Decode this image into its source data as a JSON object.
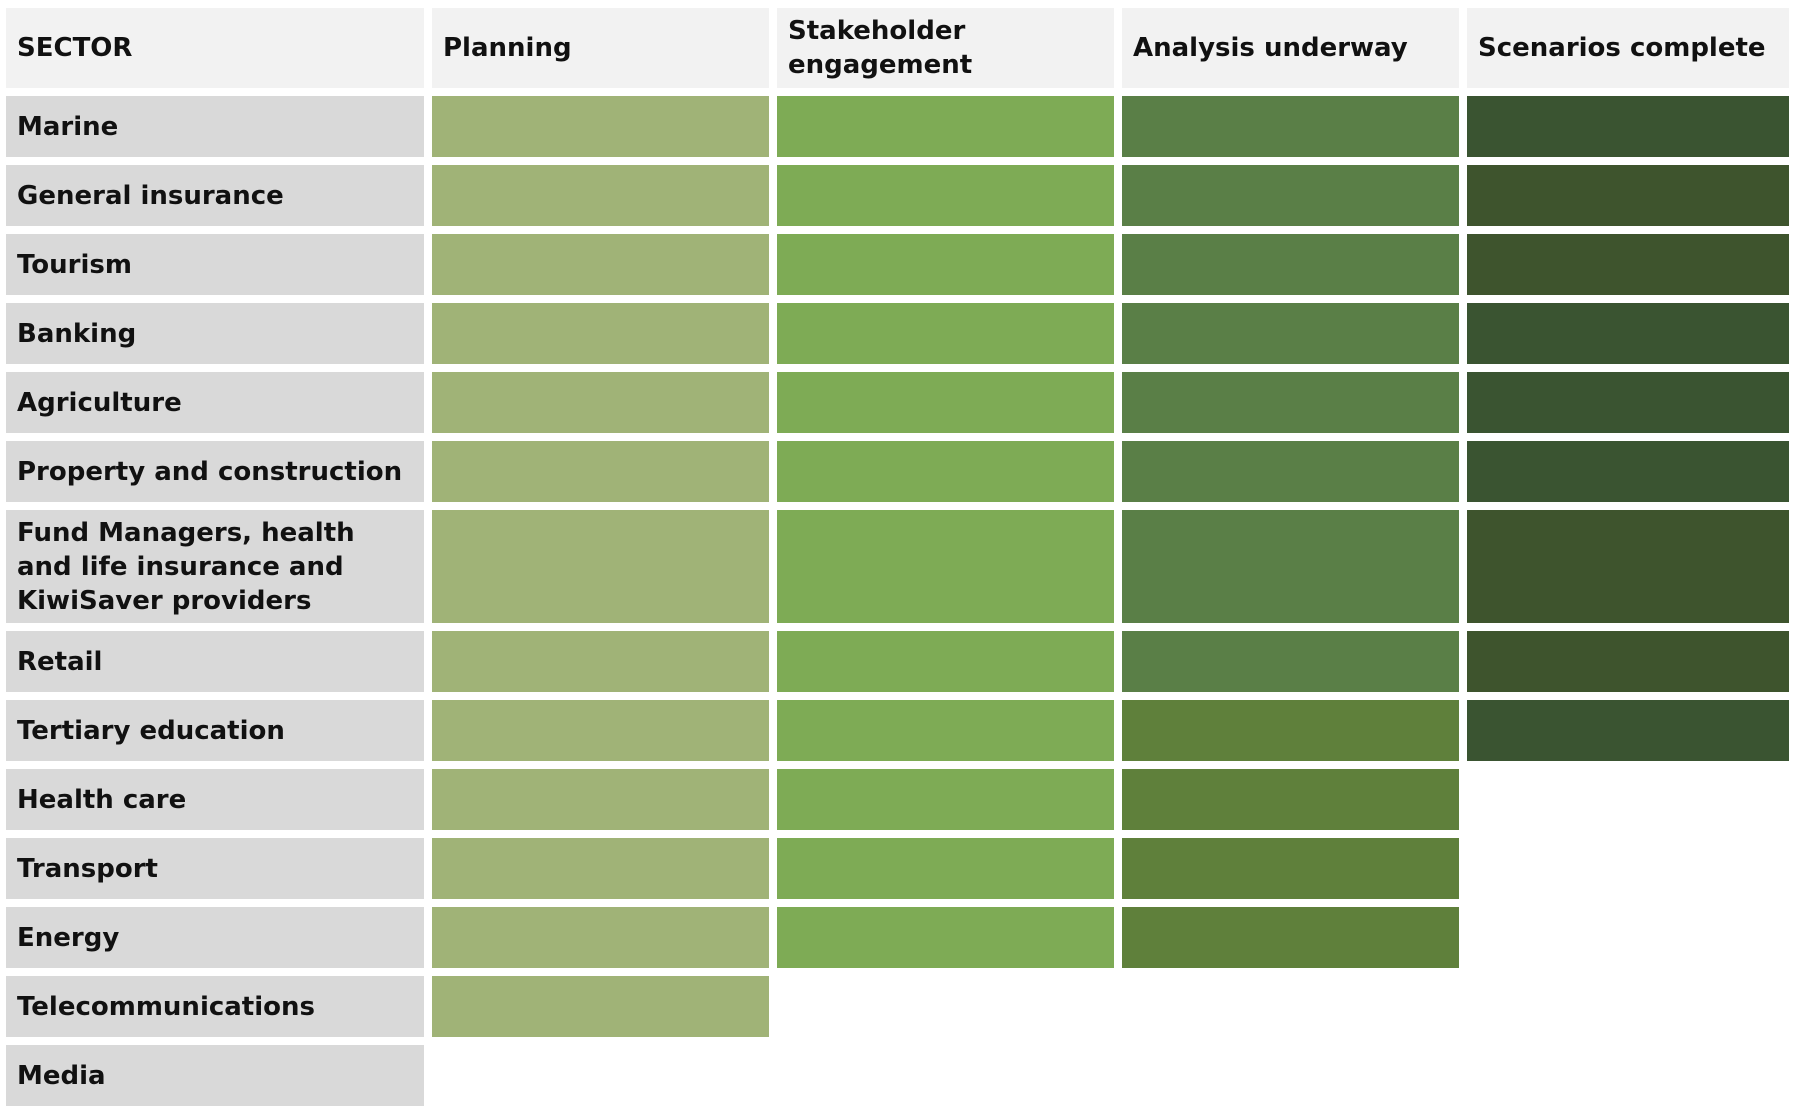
{
  "chart_data": {
    "type": "table",
    "columns": [
      "SECTOR",
      "Planning",
      "Stakeholder engagement",
      "Analysis underway",
      "Scenarios complete"
    ],
    "rows": [
      {
        "sector": "Marine",
        "stages_reached": 4
      },
      {
        "sector": "General insurance",
        "stages_reached": 4
      },
      {
        "sector": "Tourism",
        "stages_reached": 4
      },
      {
        "sector": "Banking",
        "stages_reached": 4
      },
      {
        "sector": "Agriculture",
        "stages_reached": 4
      },
      {
        "sector": "Property and construction",
        "stages_reached": 4
      },
      {
        "sector": "Fund Managers, health and life insurance and KiwiSaver providers",
        "stages_reached": 4
      },
      {
        "sector": "Retail",
        "stages_reached": 4
      },
      {
        "sector": "Tertiary education",
        "stages_reached": 4
      },
      {
        "sector": "Health care",
        "stages_reached": 3
      },
      {
        "sector": "Transport",
        "stages_reached": 3
      },
      {
        "sector": "Energy",
        "stages_reached": 3
      },
      {
        "sector": "Telecommunications",
        "stages_reached": 1
      },
      {
        "sector": "Media",
        "stages_reached": 0
      }
    ],
    "colors": {
      "header_bg": "#f2f2f2",
      "sector_bg": "#d9d9d9",
      "planning": "#a0b377",
      "stakeholder_engagement": "#7eab55",
      "analysis_underway": "#5a7f47",
      "analysis_underway_alt": "#5f803b",
      "scenarios_complete": "#3a5431",
      "scenarios_complete_alt": "#3e542d"
    }
  }
}
